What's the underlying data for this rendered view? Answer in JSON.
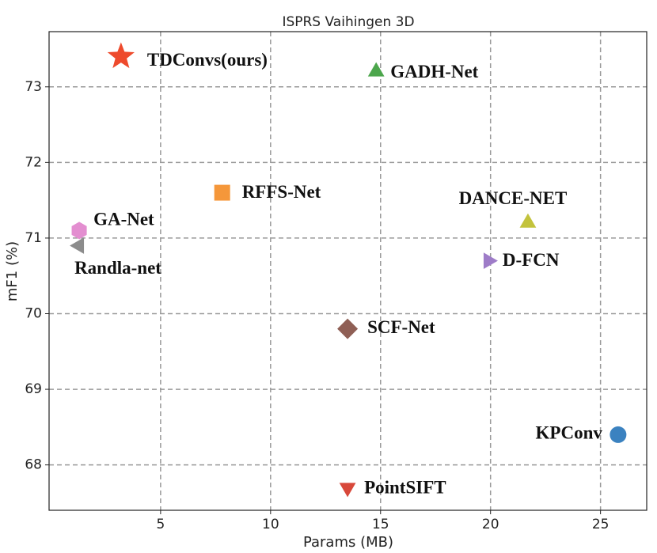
{
  "chart_data": {
    "type": "scatter",
    "title": "ISPRS Vaihingen 3D",
    "x_label": "Params (MB)",
    "y_label": "mF1 (%)",
    "xlim": [
      -0.07,
      27.1
    ],
    "ylim": [
      67.4,
      73.73
    ],
    "xticks": [
      5,
      10,
      15,
      20,
      25
    ],
    "yticks": [
      68,
      69,
      70,
      71,
      72,
      73
    ],
    "grid": true,
    "series": [
      {
        "name": "TDConvs(ours)",
        "color": "#ee4a2c",
        "marker": "star",
        "x": [
          3.2
        ],
        "values": [
          73.4
        ]
      },
      {
        "name": "GADH-Net",
        "color": "#4ca64c",
        "marker": "triangle-up",
        "x": [
          14.8
        ],
        "values": [
          73.2
        ]
      },
      {
        "name": "RFFS-Net",
        "color": "#f5973a",
        "marker": "square",
        "x": [
          7.8
        ],
        "values": [
          71.6
        ]
      },
      {
        "name": "GA-Net",
        "color": "#e38ed0",
        "marker": "hexagon",
        "x": [
          1.3
        ],
        "values": [
          71.1
        ]
      },
      {
        "name": "Randla-net",
        "color": "#8c8c8c",
        "marker": "triangle-left",
        "x": [
          1.3
        ],
        "values": [
          70.9
        ]
      },
      {
        "name": "DANCE-NET",
        "color": "#c3c33c",
        "marker": "triangle-up",
        "x": [
          21.7
        ],
        "values": [
          71.2
        ]
      },
      {
        "name": "D-FCN",
        "color": "#9e7cc8",
        "marker": "triangle-right",
        "x": [
          19.9
        ],
        "values": [
          70.7
        ]
      },
      {
        "name": "SCF-Net",
        "color": "#8f5f55",
        "marker": "diamond",
        "x": [
          13.5
        ],
        "values": [
          69.8
        ]
      },
      {
        "name": "KPConv",
        "color": "#3b82c0",
        "marker": "circle",
        "x": [
          25.8
        ],
        "values": [
          68.4
        ]
      },
      {
        "name": "PointSIFT",
        "color": "#d8483a",
        "marker": "triangle-down",
        "x": [
          13.5
        ],
        "values": [
          67.7
        ]
      }
    ]
  }
}
